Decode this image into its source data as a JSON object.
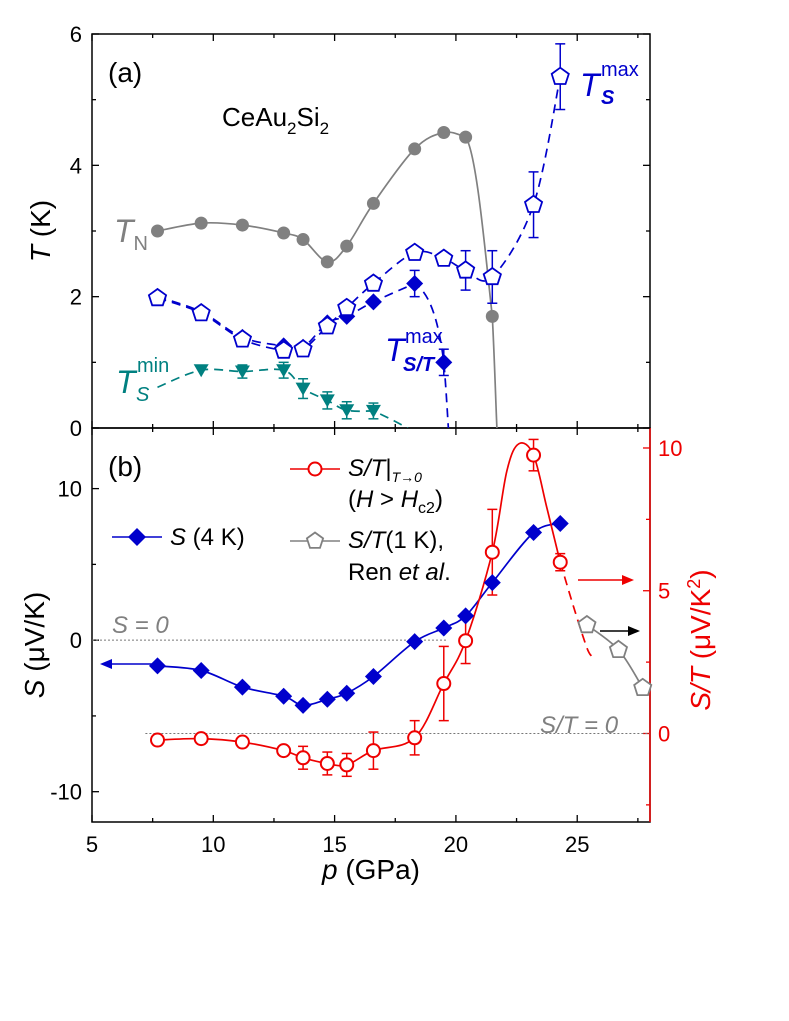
{
  "chart_data": [
    {
      "panel_label": "(a)",
      "type": "line",
      "annotation": "CeAu2Si2",
      "annotation_main": "CeAu",
      "annotation_sub1": "2",
      "annotation_mid": "Si",
      "annotation_sub2": "2",
      "xlim": [
        5,
        28
      ],
      "ylim": [
        0,
        6
      ],
      "y_ticks": [
        0,
        2,
        4,
        6
      ],
      "ylabel_italic": "T",
      "ylabel_rest": " (K)",
      "series": [
        {
          "name": "TN",
          "label_main": "T",
          "label_sub": "N",
          "color": "#808080",
          "marker": "circle-filled",
          "points": [
            [
              7.7,
              3.0
            ],
            [
              9.5,
              3.12
            ],
            [
              11.2,
              3.09
            ],
            [
              12.9,
              2.97
            ],
            [
              13.7,
              2.87
            ],
            [
              14.7,
              2.53
            ],
            [
              15.5,
              2.77
            ],
            [
              16.6,
              3.42
            ],
            [
              18.3,
              4.25
            ],
            [
              19.5,
              4.5
            ],
            [
              20.4,
              4.43
            ],
            [
              21.5,
              1.7
            ]
          ]
        },
        {
          "name": "TSmax",
          "label_main": "T",
          "label_sub": "S",
          "label_sup": "max",
          "color": "#0000cc",
          "marker": "pentagon-open",
          "points": [
            [
              7.7,
              1.98
            ],
            [
              9.5,
              1.75
            ],
            [
              11.2,
              1.35
            ],
            [
              12.9,
              1.18
            ],
            [
              13.7,
              1.2
            ],
            [
              14.7,
              1.55
            ],
            [
              15.5,
              1.83
            ],
            [
              16.6,
              2.2
            ],
            [
              18.3,
              2.67
            ],
            [
              19.5,
              2.58
            ],
            [
              20.4,
              2.4
            ],
            [
              21.5,
              2.3
            ],
            [
              23.2,
              3.4
            ],
            [
              24.3,
              5.35
            ]
          ],
          "errors": [
            0,
            0,
            0,
            0,
            0,
            0,
            0,
            0,
            0,
            0,
            0.3,
            0.4,
            0.5,
            0.5
          ]
        },
        {
          "name": "TS/Tmax",
          "label_main": "T",
          "label_sub": "S/T",
          "label_sup": "max",
          "color": "#0000cc",
          "marker": "diamond-filled",
          "points": [
            [
              7.7,
              2.0
            ],
            [
              9.5,
              1.77
            ],
            [
              11.2,
              1.38
            ],
            [
              12.9,
              1.25
            ],
            [
              13.7,
              1.23
            ],
            [
              14.7,
              1.6
            ],
            [
              15.5,
              1.7
            ],
            [
              16.6,
              1.92
            ],
            [
              18.3,
              2.2
            ],
            [
              19.5,
              1.0
            ]
          ],
          "errors": [
            0,
            0,
            0,
            0,
            0,
            0,
            0,
            0,
            0.2,
            0.2
          ]
        },
        {
          "name": "TSmin",
          "label_main": "T",
          "label_sub": "S",
          "label_sup": "min",
          "color": "#008080",
          "marker": "triangle-down-filled",
          "points": [
            [
              9.5,
              0.88
            ],
            [
              11.2,
              0.86
            ],
            [
              12.9,
              0.88
            ],
            [
              13.7,
              0.6
            ],
            [
              14.7,
              0.42
            ],
            [
              15.5,
              0.27
            ],
            [
              16.6,
              0.26
            ]
          ],
          "errors": [
            0,
            0.1,
            0.12,
            0.15,
            0.13,
            0.13,
            0.12
          ]
        }
      ]
    },
    {
      "panel_label": "(b)",
      "type": "line",
      "xlim": [
        5,
        28
      ],
      "x_ticks": [
        5,
        10,
        15,
        20,
        25
      ],
      "xlabel_italic": "p",
      "xlabel_rest": " (GPa)",
      "ylim_left": [
        -12,
        14
      ],
      "y_ticks_left": [
        -10,
        0,
        10
      ],
      "ylabel_left_italic": "S",
      "ylabel_left_rest": " (μV/K)",
      "ylim_right": [
        -3.1,
        10.7
      ],
      "y_ticks_right": [
        0,
        5,
        10
      ],
      "ylabel_right_italic": "S/T",
      "ylabel_right_rest": " (μV/K",
      "ylabel_right_sup": "2",
      "ylabel_right_close": ")",
      "zero_label_S": "S = 0",
      "zero_label_ST": "S/T = 0",
      "series": [
        {
          "name": "S (4 K)",
          "legend_italic": "S",
          "legend_rest": " (4 K)",
          "axis": "left",
          "color": "#0000cc",
          "marker": "diamond-filled",
          "points": [
            [
              7.7,
              -1.7
            ],
            [
              9.5,
              -2.0
            ],
            [
              11.2,
              -3.1
            ],
            [
              12.9,
              -3.7
            ],
            [
              13.7,
              -4.3
            ],
            [
              14.7,
              -3.9
            ],
            [
              15.5,
              -3.5
            ],
            [
              16.6,
              -2.4
            ],
            [
              18.3,
              -0.1
            ],
            [
              19.5,
              0.8
            ],
            [
              20.4,
              1.6
            ],
            [
              21.5,
              3.8
            ],
            [
              23.2,
              7.1
            ],
            [
              24.3,
              7.7
            ]
          ]
        },
        {
          "name": "S/T|T→0 (H > Hc2)",
          "legend_line1_italic": "S/T",
          "legend_line1_bar": "|",
          "legend_line1_sub": "T→0",
          "legend_line2_open": "(",
          "legend_line2_H": "H",
          "legend_line2_gt": " > ",
          "legend_line2_H2": "H",
          "legend_line2_sub": "c2",
          "legend_line2_close": ")",
          "axis": "right",
          "color": "#ee0000",
          "marker": "circle-open",
          "points": [
            [
              7.7,
              -0.23
            ],
            [
              9.5,
              -0.18
            ],
            [
              11.2,
              -0.3
            ],
            [
              12.9,
              -0.6
            ],
            [
              13.7,
              -0.85
            ],
            [
              14.7,
              -1.05
            ],
            [
              15.5,
              -1.1
            ],
            [
              16.6,
              -0.6
            ],
            [
              18.3,
              -0.15
            ],
            [
              19.5,
              1.75
            ],
            [
              20.4,
              3.25
            ],
            [
              21.5,
              6.35
            ],
            [
              23.2,
              9.75
            ],
            [
              24.3,
              6.0
            ]
          ],
          "errors": [
            0,
            0,
            0,
            0.15,
            0.4,
            0.4,
            0.4,
            0.65,
            0.6,
            1.3,
            0.8,
            1.5,
            0.55,
            0.3
          ]
        },
        {
          "name": "S/T(1 K), Ren et al.",
          "legend_line1_italic": "S/T",
          "legend_line1_rest": "(1 K),",
          "legend_line2_rest": "Ren ",
          "legend_line2_italic": "et al",
          "legend_line2_dot": ".",
          "axis": "right",
          "color": "#808080",
          "marker": "pentagon-open",
          "points": [
            [
              25.4,
              3.8
            ],
            [
              26.7,
              2.93
            ],
            [
              27.7,
              1.6
            ]
          ]
        }
      ]
    }
  ]
}
